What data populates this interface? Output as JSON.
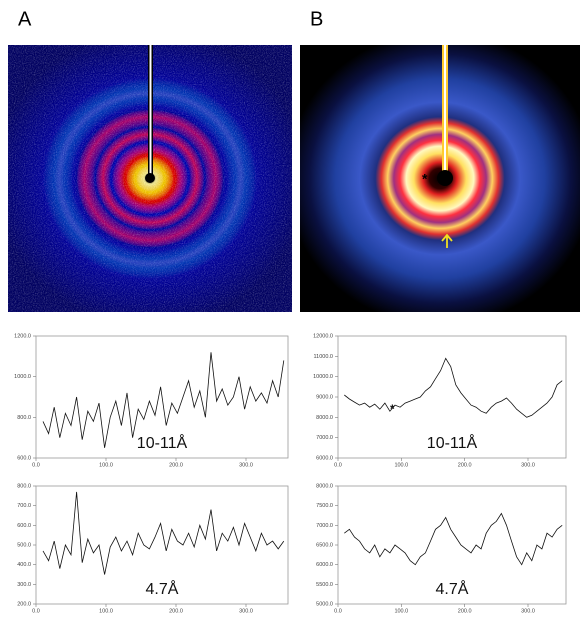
{
  "figure": {
    "panels": [
      {
        "label": "A"
      },
      {
        "label": "B",
        "annotation": "*"
      }
    ]
  },
  "chart_data": [
    {
      "type": "line",
      "title": "10-11Å",
      "color": "#111",
      "x": [
        10,
        18,
        26,
        34,
        42,
        50,
        58,
        66,
        74,
        82,
        90,
        98,
        106,
        114,
        122,
        130,
        138,
        146,
        154,
        162,
        170,
        178,
        186,
        194,
        202,
        210,
        218,
        226,
        234,
        242,
        250,
        258,
        266,
        274,
        282,
        290,
        298,
        306,
        314,
        322,
        330,
        338,
        346,
        354
      ],
      "values": [
        780,
        720,
        850,
        700,
        820,
        760,
        900,
        690,
        830,
        780,
        870,
        650,
        800,
        880,
        760,
        920,
        700,
        840,
        790,
        880,
        810,
        950,
        760,
        870,
        820,
        900,
        980,
        850,
        930,
        800,
        1120,
        880,
        940,
        860,
        900,
        1000,
        840,
        950,
        880,
        920,
        870,
        980,
        900,
        1080
      ],
      "xlim": [
        0,
        360
      ],
      "ylim": [
        600,
        1200
      ],
      "xticks": [
        {
          "value": 0,
          "label": "0.0"
        },
        {
          "value": 100,
          "label": "100.0"
        },
        {
          "value": 200,
          "label": "200.0"
        },
        {
          "value": 300,
          "label": "300.0"
        }
      ],
      "yticks": [
        {
          "value": 600,
          "label": "600.0"
        },
        {
          "value": 800,
          "label": "800.0"
        },
        {
          "value": 1000,
          "label": "1000.0"
        },
        {
          "value": 1200,
          "label": "1200.0"
        }
      ]
    },
    {
      "type": "line",
      "title": "4.7Å",
      "color": "#111",
      "x": [
        10,
        18,
        26,
        34,
        42,
        50,
        58,
        66,
        74,
        82,
        90,
        98,
        106,
        114,
        122,
        130,
        138,
        146,
        154,
        162,
        170,
        178,
        186,
        194,
        202,
        210,
        218,
        226,
        234,
        242,
        250,
        258,
        266,
        274,
        282,
        290,
        298,
        306,
        314,
        322,
        330,
        338,
        346,
        354
      ],
      "values": [
        470,
        420,
        520,
        380,
        500,
        450,
        770,
        410,
        530,
        460,
        500,
        350,
        490,
        540,
        470,
        520,
        450,
        560,
        500,
        480,
        540,
        610,
        470,
        580,
        520,
        500,
        560,
        490,
        600,
        530,
        680,
        470,
        560,
        520,
        590,
        500,
        610,
        540,
        470,
        560,
        500,
        520,
        480,
        520
      ],
      "xlim": [
        0,
        360
      ],
      "ylim": [
        200,
        800
      ],
      "xticks": [
        {
          "value": 0,
          "label": "0.0"
        },
        {
          "value": 100,
          "label": "100.0"
        },
        {
          "value": 200,
          "label": "200.0"
        },
        {
          "value": 300,
          "label": "300.0"
        }
      ],
      "yticks": [
        {
          "value": 200,
          "label": "200.0"
        },
        {
          "value": 300,
          "label": "300.0"
        },
        {
          "value": 400,
          "label": "400.0"
        },
        {
          "value": 500,
          "label": "500.0"
        },
        {
          "value": 600,
          "label": "600.0"
        },
        {
          "value": 700,
          "label": "700.0"
        },
        {
          "value": 800,
          "label": "800.0"
        }
      ]
    },
    {
      "type": "line",
      "title": "10-11Å",
      "note": "*",
      "color": "#111",
      "x": [
        10,
        18,
        26,
        34,
        42,
        50,
        58,
        66,
        74,
        82,
        90,
        98,
        106,
        114,
        122,
        130,
        138,
        146,
        154,
        162,
        170,
        178,
        186,
        194,
        202,
        210,
        218,
        226,
        234,
        242,
        250,
        258,
        266,
        274,
        282,
        290,
        298,
        306,
        314,
        322,
        330,
        338,
        346,
        354
      ],
      "values": [
        9100,
        8900,
        8750,
        8600,
        8700,
        8500,
        8650,
        8400,
        8700,
        8300,
        8600,
        8500,
        8700,
        8800,
        8900,
        9000,
        9300,
        9500,
        9900,
        10300,
        10900,
        10500,
        9600,
        9200,
        8900,
        8600,
        8500,
        8300,
        8200,
        8500,
        8700,
        8800,
        8950,
        8700,
        8400,
        8200,
        8000,
        8100,
        8300,
        8500,
        8700,
        9000,
        9600,
        9800
      ],
      "xlim": [
        0,
        360
      ],
      "ylim": [
        6000,
        12000
      ],
      "xticks": [
        {
          "value": 0,
          "label": "0.0"
        },
        {
          "value": 100,
          "label": "100.0"
        },
        {
          "value": 200,
          "label": "200.0"
        },
        {
          "value": 300,
          "label": "300.0"
        }
      ],
      "yticks": [
        {
          "value": 6000,
          "label": "6000.0"
        },
        {
          "value": 7000,
          "label": "7000.0"
        },
        {
          "value": 8000,
          "label": "8000.0"
        },
        {
          "value": 9000,
          "label": "9000.0"
        },
        {
          "value": 10000,
          "label": "10000.0"
        },
        {
          "value": 11000,
          "label": "11000.0"
        },
        {
          "value": 12000,
          "label": "12000.0"
        }
      ]
    },
    {
      "type": "line",
      "title": "4.7Å",
      "color": "#111",
      "x": [
        10,
        18,
        26,
        34,
        42,
        50,
        58,
        66,
        74,
        82,
        90,
        98,
        106,
        114,
        122,
        130,
        138,
        146,
        154,
        162,
        170,
        178,
        186,
        194,
        202,
        210,
        218,
        226,
        234,
        242,
        250,
        258,
        266,
        274,
        282,
        290,
        298,
        306,
        314,
        322,
        330,
        338,
        346,
        354
      ],
      "values": [
        6800,
        6900,
        6700,
        6600,
        6400,
        6300,
        6500,
        6200,
        6400,
        6300,
        6500,
        6400,
        6300,
        6100,
        6000,
        6200,
        6300,
        6600,
        6900,
        7000,
        7200,
        6900,
        6700,
        6500,
        6400,
        6300,
        6500,
        6400,
        6800,
        7000,
        7100,
        7300,
        7000,
        6600,
        6200,
        6000,
        6300,
        6100,
        6500,
        6400,
        6800,
        6700,
        6900,
        7000
      ],
      "xlim": [
        0,
        360
      ],
      "ylim": [
        5000,
        8000
      ],
      "xticks": [
        {
          "value": 0,
          "label": "0.0"
        },
        {
          "value": 100,
          "label": "100.0"
        },
        {
          "value": 200,
          "label": "200.0"
        },
        {
          "value": 300,
          "label": "300.0"
        }
      ],
      "yticks": [
        {
          "value": 5000,
          "label": "5000.0"
        },
        {
          "value": 5500,
          "label": "5500.0"
        },
        {
          "value": 6000,
          "label": "6000.0"
        },
        {
          "value": 6500,
          "label": "6500.0"
        },
        {
          "value": 7000,
          "label": "7000.0"
        },
        {
          "value": 7500,
          "label": "7500.0"
        },
        {
          "value": 8000,
          "label": "8000.0"
        }
      ]
    }
  ]
}
